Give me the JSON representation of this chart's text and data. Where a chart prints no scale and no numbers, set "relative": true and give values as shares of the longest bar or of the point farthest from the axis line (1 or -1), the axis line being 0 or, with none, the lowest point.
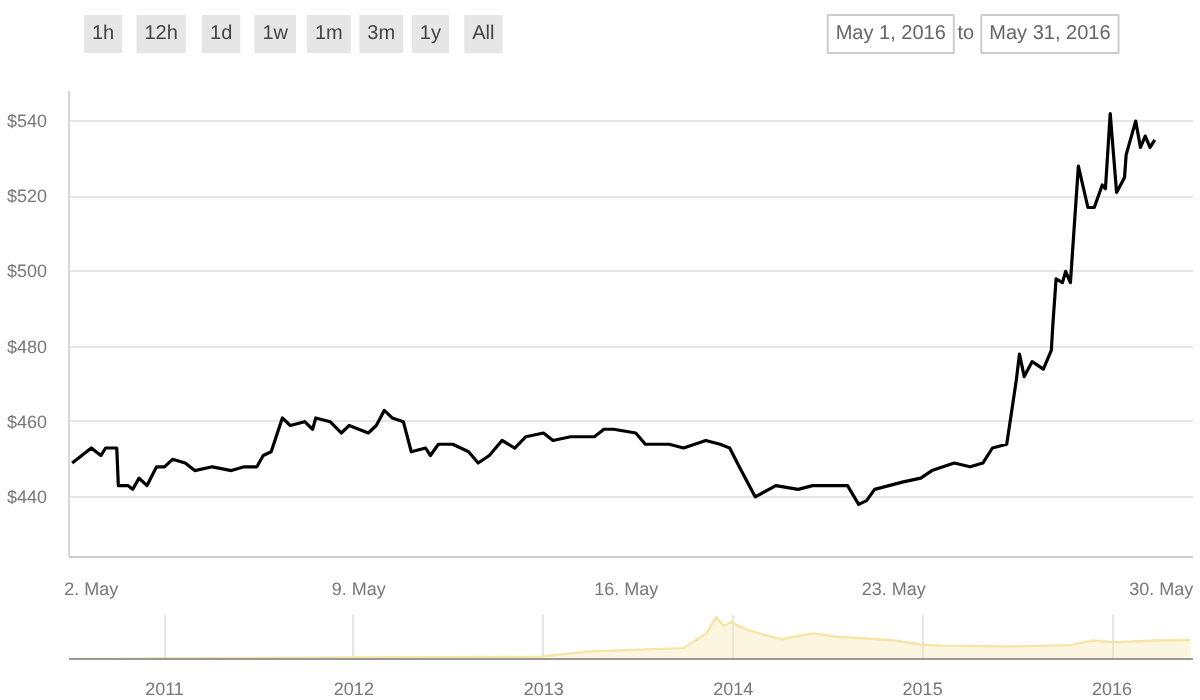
{
  "chart_data": [
    {
      "type": "line",
      "annotations": [
        "1h",
        "12h",
        "1d",
        "1w",
        "1m",
        "3m",
        "1y",
        "All",
        "May 1, 2016",
        "to",
        "May 31, 2016"
      ],
      "x": [
        "2016-05-01T12:00",
        "2016-05-02T00:00",
        "2016-05-02T06:00",
        "2016-05-02T09:00",
        "2016-05-02T16:00",
        "2016-05-02T17:00",
        "2016-05-02T23:00",
        "2016-05-03T02:00",
        "2016-05-03T06:00",
        "2016-05-03T11:00",
        "2016-05-03T17:00",
        "2016-05-03T22:00",
        "2016-05-04T03:00",
        "2016-05-04T11:00",
        "2016-05-04T17:00",
        "2016-05-05T04:00",
        "2016-05-05T16:00",
        "2016-05-06T00:00",
        "2016-05-06T08:00",
        "2016-05-06T12:00",
        "2016-05-06T17:00",
        "2016-05-07T00:00",
        "2016-05-07T05:00",
        "2016-05-07T14:00",
        "2016-05-07T19:00",
        "2016-05-07T21:00",
        "2016-05-08T06:00",
        "2016-05-08T13:00",
        "2016-05-08T18:00",
        "2016-05-09T06:00",
        "2016-05-09T11:00",
        "2016-05-09T16:00",
        "2016-05-09T21:00",
        "2016-05-10T04:00",
        "2016-05-10T09:00",
        "2016-05-10T18:00",
        "2016-05-10T21:00",
        "2016-05-11T02:00",
        "2016-05-11T11:00",
        "2016-05-11T21:00",
        "2016-05-12T03:00",
        "2016-05-12T10:00",
        "2016-05-12T18:00",
        "2016-05-13T02:00",
        "2016-05-13T09:00",
        "2016-05-13T20:00",
        "2016-05-14T02:00",
        "2016-05-14T13:00",
        "2016-05-14T20:00",
        "2016-05-15T04:00",
        "2016-05-15T10:00",
        "2016-05-15T16:00",
        "2016-05-16T06:00",
        "2016-05-16T12:00",
        "2016-05-17T03:00",
        "2016-05-17T12:00",
        "2016-05-18T02:00",
        "2016-05-18T11:00",
        "2016-05-18T17:00",
        "2016-05-18T23:00",
        "2016-05-19T09:00",
        "2016-05-19T22:00",
        "2016-05-20T12:00",
        "2016-05-20T21:00",
        "2016-05-21T19:00",
        "2016-05-22T02:00",
        "2016-05-22T07:00",
        "2016-05-22T12:00",
        "2016-05-23T06:00",
        "2016-05-23T17:00",
        "2016-05-24T00:00",
        "2016-05-24T14:00",
        "2016-05-25T00:00",
        "2016-05-25T08:00",
        "2016-05-25T14:00",
        "2016-05-25T23:00",
        "2016-05-26T05:00",
        "2016-05-26T07:00",
        "2016-05-26T10:00",
        "2016-05-26T15:00",
        "2016-05-26T22:00",
        "2016-05-27T03:00",
        "2016-05-27T04:00",
        "2016-05-27T06:00",
        "2016-05-27T10:00",
        "2016-05-27T12:00",
        "2016-05-27T15:00",
        "2016-05-27T20:00",
        "2016-05-28T02:00",
        "2016-05-28T06:00",
        "2016-05-28T11:00",
        "2016-05-28T13:00",
        "2016-05-28T16:00",
        "2016-05-28T20:00",
        "2016-05-29T01:00",
        "2016-05-29T02:00",
        "2016-05-29T08:00",
        "2016-05-29T11:00",
        "2016-05-29T14:00",
        "2016-05-29T17:00",
        "2016-05-29T20:00"
      ],
      "series": [
        {
          "color": "#000000",
          "values": [
            449,
            453,
            451,
            453,
            453,
            443,
            443,
            442,
            445,
            443,
            448,
            448,
            450,
            449,
            447,
            448,
            447,
            448,
            448,
            451,
            452,
            461,
            459,
            460,
            458,
            461,
            460,
            457,
            459,
            457,
            459,
            463,
            461,
            460,
            452,
            453,
            451,
            454,
            454,
            452,
            449,
            451,
            455,
            453,
            456,
            457,
            455,
            456,
            456,
            456,
            458,
            458,
            457,
            454,
            454,
            453,
            455,
            454,
            453,
            448,
            440,
            443,
            442,
            443,
            443,
            438,
            439,
            442,
            444,
            445,
            447,
            449,
            448,
            449,
            453,
            454,
            471,
            478,
            472,
            476,
            474,
            479,
            486,
            498,
            497,
            500,
            497,
            528,
            517,
            517,
            523,
            522,
            542,
            521,
            525,
            531,
            540,
            533,
            536,
            533,
            535
          ]
        }
      ],
      "xlim": [
        "2016-05-01T10:00",
        "2016-05-30T20:00"
      ],
      "xticks": [
        {
          "value": "2016-05-02",
          "label": "2. May"
        },
        {
          "value": "2016-05-09",
          "label": "9. May"
        },
        {
          "value": "2016-05-16",
          "label": "16. May"
        },
        {
          "value": "2016-05-23",
          "label": "23. May"
        },
        {
          "value": "2016-05-30",
          "label": "30. May"
        }
      ],
      "ylim": [
        424,
        548
      ],
      "yticks": [
        {
          "value": 440,
          "label": "$440"
        },
        {
          "value": 460,
          "label": "$460"
        },
        {
          "value": 480,
          "label": "$480"
        },
        {
          "value": 500,
          "label": "$500"
        },
        {
          "value": 520,
          "label": "$520"
        },
        {
          "value": 540,
          "label": "$540"
        }
      ],
      "grid": "y"
    },
    {
      "type": "area",
      "relative": true,
      "x": [
        "2010-07-10",
        "2012-01-04",
        "2012-12-20",
        "2013-03-28",
        "2013-09-27",
        "2013-11-10",
        "2013-11-29",
        "2013-12-14",
        "2013-12-28",
        "2014-01-26",
        "2014-03-01",
        "2014-04-05",
        "2014-04-27",
        "2014-06-06",
        "2014-07-19",
        "2014-09-13",
        "2014-11-07",
        "2014-12-28",
        "2015-02-02",
        "2015-06-22",
        "2015-10-12",
        "2015-11-24",
        "2016-01-04",
        "2016-03-29",
        "2016-04-20",
        "2016-05-31"
      ],
      "series": [
        {
          "color": "#f5e6a8",
          "values": [
            0,
            0.035,
            0.05,
            0.18,
            0.26,
            0.61,
            1,
            0.79,
            0.88,
            0.7,
            0.58,
            0.47,
            0.53,
            0.61,
            0.53,
            0.49,
            0.44,
            0.35,
            0.32,
            0.3,
            0.33,
            0.44,
            0.4,
            0.44,
            0.44,
            0.45
          ]
        }
      ],
      "xlim": [
        "2010-07-01",
        "2016-06-05"
      ],
      "xticks": [
        {
          "value": "2011-01-01",
          "label": "2011"
        },
        {
          "value": "2012-01-01",
          "label": "2012"
        },
        {
          "value": "2013-01-01",
          "label": "2013"
        },
        {
          "value": "2014-01-01",
          "label": "2014"
        },
        {
          "value": "2015-01-01",
          "label": "2015"
        },
        {
          "value": "2016-01-01",
          "label": "2016"
        }
      ],
      "grid": "x"
    }
  ]
}
